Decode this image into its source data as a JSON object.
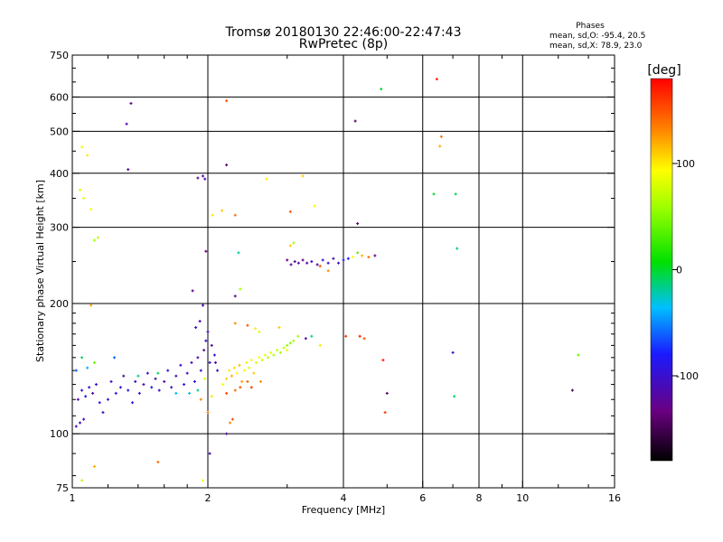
{
  "header": {
    "title_line1": "Tromsø 20180130 22:46:00-22:47:43",
    "title_line2": "RwPretec (8p)",
    "stats_title": "Phases",
    "stats_o": "mean, sd,O: -95.4, 20.5",
    "stats_x": "mean, sd,X:  78.9, 23.0"
  },
  "chart_data": {
    "type": "scatter",
    "xlabel": "Frequency [MHz]",
    "ylabel": "Stationary phase Virtual Height [km]",
    "xscale": "log",
    "yscale": "log",
    "xlim": [
      1,
      16
    ],
    "ylim": [
      75,
      750
    ],
    "xticks": [
      {
        "value": 1,
        "label": "1"
      },
      {
        "value": 2,
        "label": "2"
      },
      {
        "value": 4,
        "label": "4"
      },
      {
        "value": 6,
        "label": "6"
      },
      {
        "value": 8,
        "label": "8"
      },
      {
        "value": 10,
        "label": "10"
      },
      {
        "value": 16,
        "label": "16"
      }
    ],
    "yticks": [
      {
        "value": 75,
        "label": "75"
      },
      {
        "value": 100,
        "label": "100"
      },
      {
        "value": 200,
        "label": "200"
      },
      {
        "value": 300,
        "label": "300"
      },
      {
        "value": 400,
        "label": "400"
      },
      {
        "value": 500,
        "label": "500"
      },
      {
        "value": 600,
        "label": "600"
      },
      {
        "value": 750,
        "label": "750"
      }
    ],
    "grid": true,
    "grid_x": [
      2,
      4,
      6,
      8,
      10
    ],
    "grid_y": [
      100,
      200,
      300,
      400,
      500,
      600
    ],
    "colorbar": {
      "title": "[deg]",
      "range": [
        -180,
        180
      ],
      "ticks": [
        {
          "value": 100,
          "label": "100"
        },
        {
          "value": 0,
          "label": "0"
        },
        {
          "value": -100,
          "label": "-100"
        }
      ]
    },
    "points": [
      {
        "f": 1.02,
        "h": 104,
        "p": -110
      },
      {
        "f": 1.04,
        "h": 106,
        "p": -105
      },
      {
        "f": 1.06,
        "h": 108,
        "p": -100
      },
      {
        "f": 1.03,
        "h": 120,
        "p": -115
      },
      {
        "f": 1.05,
        "h": 126,
        "p": -98
      },
      {
        "f": 1.07,
        "h": 122,
        "p": -85
      },
      {
        "f": 1.09,
        "h": 128,
        "p": -92
      },
      {
        "f": 1.11,
        "h": 124,
        "p": -120
      },
      {
        "f": 1.13,
        "h": 130,
        "p": -100
      },
      {
        "f": 1.15,
        "h": 118,
        "p": -88
      },
      {
        "f": 1.17,
        "h": 112,
        "p": -104
      },
      {
        "f": 1.2,
        "h": 120,
        "p": -96
      },
      {
        "f": 1.22,
        "h": 132,
        "p": -110
      },
      {
        "f": 1.25,
        "h": 124,
        "p": -90
      },
      {
        "f": 1.28,
        "h": 128,
        "p": -100
      },
      {
        "f": 1.3,
        "h": 136,
        "p": -112
      },
      {
        "f": 1.33,
        "h": 126,
        "p": -86
      },
      {
        "f": 1.36,
        "h": 118,
        "p": -98
      },
      {
        "f": 1.38,
        "h": 132,
        "p": -106
      },
      {
        "f": 1.41,
        "h": 124,
        "p": -94
      },
      {
        "f": 1.44,
        "h": 130,
        "p": -118
      },
      {
        "f": 1.47,
        "h": 138,
        "p": -102
      },
      {
        "f": 1.5,
        "h": 128,
        "p": -90
      },
      {
        "f": 1.53,
        "h": 134,
        "p": -110
      },
      {
        "f": 1.56,
        "h": 126,
        "p": -100
      },
      {
        "f": 1.6,
        "h": 132,
        "p": -122
      },
      {
        "f": 1.63,
        "h": 140,
        "p": -104
      },
      {
        "f": 1.66,
        "h": 128,
        "p": -96
      },
      {
        "f": 1.7,
        "h": 136,
        "p": -114
      },
      {
        "f": 1.74,
        "h": 144,
        "p": -100
      },
      {
        "f": 1.77,
        "h": 130,
        "p": -88
      },
      {
        "f": 1.8,
        "h": 138,
        "p": -108
      },
      {
        "f": 1.84,
        "h": 146,
        "p": -120
      },
      {
        "f": 1.87,
        "h": 132,
        "p": -95
      },
      {
        "f": 1.9,
        "h": 150,
        "p": -112
      },
      {
        "f": 1.93,
        "h": 140,
        "p": -100
      },
      {
        "f": 1.96,
        "h": 156,
        "p": -116
      },
      {
        "f": 1.98,
        "h": 164,
        "p": -104
      },
      {
        "f": 2.0,
        "h": 172,
        "p": -110
      },
      {
        "f": 2.02,
        "h": 146,
        "p": -98
      },
      {
        "f": 2.04,
        "h": 160,
        "p": -120
      },
      {
        "f": 2.07,
        "h": 152,
        "p": -92
      },
      {
        "f": 1.92,
        "h": 182,
        "p": -118
      },
      {
        "f": 1.88,
        "h": 176,
        "p": -106
      },
      {
        "f": 1.85,
        "h": 214,
        "p": -125
      },
      {
        "f": 1.95,
        "h": 198,
        "p": -110
      },
      {
        "f": 2.08,
        "h": 146,
        "p": -120
      },
      {
        "f": 2.1,
        "h": 140,
        "p": -100
      },
      {
        "f": 1.02,
        "h": 140,
        "p": -60
      },
      {
        "f": 1.08,
        "h": 142,
        "p": -40
      },
      {
        "f": 1.12,
        "h": 146,
        "p": 40
      },
      {
        "f": 1.05,
        "h": 150,
        "p": -10
      },
      {
        "f": 1.24,
        "h": 150,
        "p": -60
      },
      {
        "f": 1.4,
        "h": 136,
        "p": -20
      },
      {
        "f": 1.55,
        "h": 138,
        "p": -10
      },
      {
        "f": 1.7,
        "h": 124,
        "p": -40
      },
      {
        "f": 1.82,
        "h": 124,
        "p": -30
      },
      {
        "f": 1.9,
        "h": 126,
        "p": -20
      },
      {
        "f": 1.97,
        "h": 134,
        "p": 80
      },
      {
        "f": 1.93,
        "h": 120,
        "p": 130
      },
      {
        "f": 2.04,
        "h": 122,
        "p": 100
      },
      {
        "f": 2.0,
        "h": 112,
        "p": 130
      },
      {
        "f": 2.16,
        "h": 130,
        "p": 90
      },
      {
        "f": 2.2,
        "h": 134,
        "p": 110
      },
      {
        "f": 2.23,
        "h": 140,
        "p": 100
      },
      {
        "f": 2.26,
        "h": 136,
        "p": 120
      },
      {
        "f": 2.29,
        "h": 142,
        "p": 105
      },
      {
        "f": 2.32,
        "h": 138,
        "p": 95
      },
      {
        "f": 2.35,
        "h": 144,
        "p": 115
      },
      {
        "f": 2.38,
        "h": 132,
        "p": 125
      },
      {
        "f": 2.41,
        "h": 140,
        "p": 90
      },
      {
        "f": 2.44,
        "h": 146,
        "p": 100
      },
      {
        "f": 2.47,
        "h": 142,
        "p": 85
      },
      {
        "f": 2.5,
        "h": 148,
        "p": 95
      },
      {
        "f": 2.53,
        "h": 138,
        "p": 110
      },
      {
        "f": 2.56,
        "h": 146,
        "p": 80
      },
      {
        "f": 2.6,
        "h": 150,
        "p": 90
      },
      {
        "f": 2.64,
        "h": 148,
        "p": 75
      },
      {
        "f": 2.68,
        "h": 152,
        "p": 85
      },
      {
        "f": 2.72,
        "h": 150,
        "p": 70
      },
      {
        "f": 2.76,
        "h": 154,
        "p": 80
      },
      {
        "f": 2.8,
        "h": 152,
        "p": 65
      },
      {
        "f": 2.85,
        "h": 156,
        "p": 75
      },
      {
        "f": 2.9,
        "h": 154,
        "p": 60
      },
      {
        "f": 2.95,
        "h": 158,
        "p": 70
      },
      {
        "f": 3.0,
        "h": 160,
        "p": 55
      },
      {
        "f": 3.05,
        "h": 162,
        "p": 50
      },
      {
        "f": 3.1,
        "h": 164,
        "p": 60
      },
      {
        "f": 3.0,
        "h": 156,
        "p": 85
      },
      {
        "f": 2.3,
        "h": 126,
        "p": 140
      },
      {
        "f": 2.36,
        "h": 128,
        "p": 150
      },
      {
        "f": 2.45,
        "h": 132,
        "p": 145
      },
      {
        "f": 2.5,
        "h": 128,
        "p": 160
      },
      {
        "f": 2.62,
        "h": 132,
        "p": 130
      },
      {
        "f": 2.2,
        "h": 124,
        "p": 155
      },
      {
        "f": 2.27,
        "h": 108,
        "p": 150
      },
      {
        "f": 2.24,
        "h": 106,
        "p": 130
      },
      {
        "f": 2.3,
        "h": 180,
        "p": 130
      },
      {
        "f": 2.45,
        "h": 178,
        "p": 150
      },
      {
        "f": 2.88,
        "h": 176,
        "p": 110
      },
      {
        "f": 2.6,
        "h": 172,
        "p": 80
      },
      {
        "f": 2.55,
        "h": 175,
        "p": 100
      },
      {
        "f": 3.17,
        "h": 168,
        "p": 60
      },
      {
        "f": 3.0,
        "h": 252,
        "p": -130
      },
      {
        "f": 3.06,
        "h": 246,
        "p": -120
      },
      {
        "f": 3.12,
        "h": 250,
        "p": -125
      },
      {
        "f": 3.18,
        "h": 248,
        "p": -115
      },
      {
        "f": 3.25,
        "h": 252,
        "p": -130
      },
      {
        "f": 3.32,
        "h": 248,
        "p": -120
      },
      {
        "f": 3.4,
        "h": 250,
        "p": -110
      },
      {
        "f": 3.5,
        "h": 246,
        "p": -118
      },
      {
        "f": 3.6,
        "h": 252,
        "p": -100
      },
      {
        "f": 3.7,
        "h": 248,
        "p": -95
      },
      {
        "f": 3.8,
        "h": 254,
        "p": -110
      },
      {
        "f": 3.9,
        "h": 248,
        "p": -105
      },
      {
        "f": 4.0,
        "h": 252,
        "p": -90
      },
      {
        "f": 4.1,
        "h": 254,
        "p": -80
      },
      {
        "f": 4.2,
        "h": 256,
        "p": 90
      },
      {
        "f": 4.4,
        "h": 258,
        "p": 120
      },
      {
        "f": 4.55,
        "h": 256,
        "p": 140
      },
      {
        "f": 4.7,
        "h": 258,
        "p": -130
      },
      {
        "f": 4.3,
        "h": 262,
        "p": 40
      },
      {
        "f": 3.05,
        "h": 272,
        "p": 110
      },
      {
        "f": 3.1,
        "h": 276,
        "p": 60
      },
      {
        "f": 3.55,
        "h": 244,
        "p": 150
      },
      {
        "f": 3.7,
        "h": 238,
        "p": 130
      },
      {
        "f": 1.05,
        "h": 460,
        "p": 90
      },
      {
        "f": 1.08,
        "h": 440,
        "p": 100
      },
      {
        "f": 1.04,
        "h": 366,
        "p": 80
      },
      {
        "f": 1.06,
        "h": 350,
        "p": 85
      },
      {
        "f": 1.1,
        "h": 330,
        "p": 90
      },
      {
        "f": 1.12,
        "h": 280,
        "p": 60
      },
      {
        "f": 1.14,
        "h": 284,
        "p": 70
      },
      {
        "f": 1.1,
        "h": 198,
        "p": 120
      },
      {
        "f": 1.35,
        "h": 580,
        "p": -130
      },
      {
        "f": 1.32,
        "h": 520,
        "p": -110
      },
      {
        "f": 1.33,
        "h": 408,
        "p": -120
      },
      {
        "f": 1.9,
        "h": 390,
        "p": -130
      },
      {
        "f": 1.95,
        "h": 394,
        "p": -120
      },
      {
        "f": 1.97,
        "h": 388,
        "p": -110
      },
      {
        "f": 1.98,
        "h": 264,
        "p": -135
      },
      {
        "f": 2.2,
        "h": 588,
        "p": 150
      },
      {
        "f": 2.2,
        "h": 418,
        "p": -140
      },
      {
        "f": 2.05,
        "h": 320,
        "p": 100
      },
      {
        "f": 2.15,
        "h": 328,
        "p": 110
      },
      {
        "f": 2.3,
        "h": 320,
        "p": 140
      },
      {
        "f": 2.34,
        "h": 262,
        "p": -20
      },
      {
        "f": 2.3,
        "h": 208,
        "p": -120
      },
      {
        "f": 2.36,
        "h": 216,
        "p": 60
      },
      {
        "f": 2.7,
        "h": 388,
        "p": 100
      },
      {
        "f": 3.05,
        "h": 326,
        "p": 150
      },
      {
        "f": 3.25,
        "h": 394,
        "p": 110
      },
      {
        "f": 3.45,
        "h": 336,
        "p": 90
      },
      {
        "f": 3.3,
        "h": 166,
        "p": -110
      },
      {
        "f": 3.4,
        "h": 168,
        "p": -20
      },
      {
        "f": 3.55,
        "h": 160,
        "p": 100
      },
      {
        "f": 4.05,
        "h": 168,
        "p": 160
      },
      {
        "f": 4.35,
        "h": 168,
        "p": 170
      },
      {
        "f": 4.45,
        "h": 166,
        "p": 150
      },
      {
        "f": 4.25,
        "h": 528,
        "p": -140
      },
      {
        "f": 4.3,
        "h": 306,
        "p": -140
      },
      {
        "f": 4.85,
        "h": 626,
        "p": 0
      },
      {
        "f": 4.9,
        "h": 148,
        "p": 170
      },
      {
        "f": 5.0,
        "h": 124,
        "p": -140
      },
      {
        "f": 4.95,
        "h": 112,
        "p": 160
      },
      {
        "f": 6.45,
        "h": 660,
        "p": 170
      },
      {
        "f": 6.6,
        "h": 486,
        "p": 140
      },
      {
        "f": 6.55,
        "h": 462,
        "p": 120
      },
      {
        "f": 6.35,
        "h": 358,
        "p": 0
      },
      {
        "f": 7.1,
        "h": 358,
        "p": -10
      },
      {
        "f": 7.15,
        "h": 268,
        "p": -20
      },
      {
        "f": 7.05,
        "h": 122,
        "p": -10
      },
      {
        "f": 7.0,
        "h": 154,
        "p": -100
      },
      {
        "f": 12.9,
        "h": 126,
        "p": -145
      },
      {
        "f": 13.3,
        "h": 152,
        "p": 40
      },
      {
        "f": 1.95,
        "h": 78,
        "p": 90
      },
      {
        "f": 1.05,
        "h": 78,
        "p": 70
      },
      {
        "f": 1.12,
        "h": 84,
        "p": 120
      },
      {
        "f": 1.55,
        "h": 86,
        "p": 140
      },
      {
        "f": 2.02,
        "h": 90,
        "p": -110
      },
      {
        "f": 2.2,
        "h": 100,
        "p": -120
      }
    ]
  }
}
